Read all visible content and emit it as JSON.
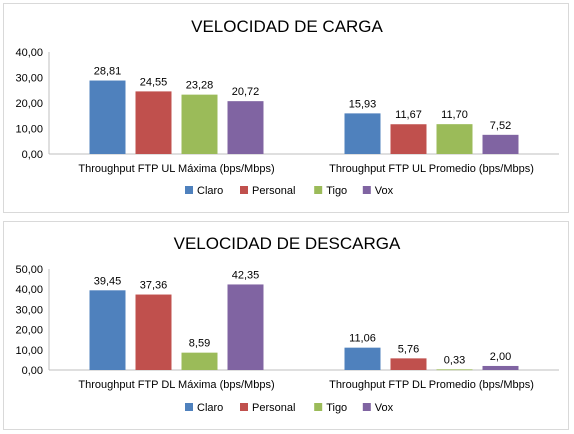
{
  "chart_data": [
    {
      "type": "bar",
      "title": "VELOCIDAD DE CARGA",
      "categories": [
        "Throughput FTP UL Máxima (bps/Mbps)",
        "Throughput FTP UL Promedio (bps/Mbps)"
      ],
      "series": [
        {
          "name": "Claro",
          "color": "#4f81bd",
          "values": [
            28.81,
            15.93
          ],
          "labels": [
            "28,81",
            "15,93"
          ]
        },
        {
          "name": "Personal",
          "color": "#c0504d",
          "values": [
            24.55,
            11.67
          ],
          "labels": [
            "24,55",
            "11,67"
          ]
        },
        {
          "name": "Tigo",
          "color": "#9bbb59",
          "values": [
            23.28,
            11.7
          ],
          "labels": [
            "23,28",
            "11,70"
          ]
        },
        {
          "name": "Vox",
          "color": "#8064a2",
          "values": [
            20.72,
            7.52
          ],
          "labels": [
            "20,72",
            "7,52"
          ]
        }
      ],
      "ylim": [
        0,
        40
      ],
      "yticks": [
        0,
        10,
        20,
        30,
        40
      ],
      "ytick_labels": [
        "0,00",
        "10,00",
        "20,00",
        "30,00",
        "40,00"
      ],
      "grid": false,
      "legend": "bottom"
    },
    {
      "type": "bar",
      "title": "VELOCIDAD DE DESCARGA",
      "categories": [
        "Throughput FTP DL Máxima (bps/Mbps)",
        "Throughput FTP DL Promedio (bps/Mbps)"
      ],
      "series": [
        {
          "name": "Claro",
          "color": "#4f81bd",
          "values": [
            39.45,
            11.06
          ],
          "labels": [
            "39,45",
            "11,06"
          ]
        },
        {
          "name": "Personal",
          "color": "#c0504d",
          "values": [
            37.36,
            5.76
          ],
          "labels": [
            "37,36",
            "5,76"
          ]
        },
        {
          "name": "Tigo",
          "color": "#9bbb59",
          "values": [
            8.59,
            0.33
          ],
          "labels": [
            "8,59",
            "0,33"
          ]
        },
        {
          "name": "Vox",
          "color": "#8064a2",
          "values": [
            42.35,
            2.0
          ],
          "labels": [
            "42,35",
            "2,00"
          ]
        }
      ],
      "ylim": [
        0,
        50
      ],
      "yticks": [
        0,
        10,
        20,
        30,
        40,
        50
      ],
      "ytick_labels": [
        "0,00",
        "10,00",
        "20,00",
        "30,00",
        "40,00",
        "50,00"
      ],
      "grid": false,
      "legend": "bottom"
    }
  ]
}
